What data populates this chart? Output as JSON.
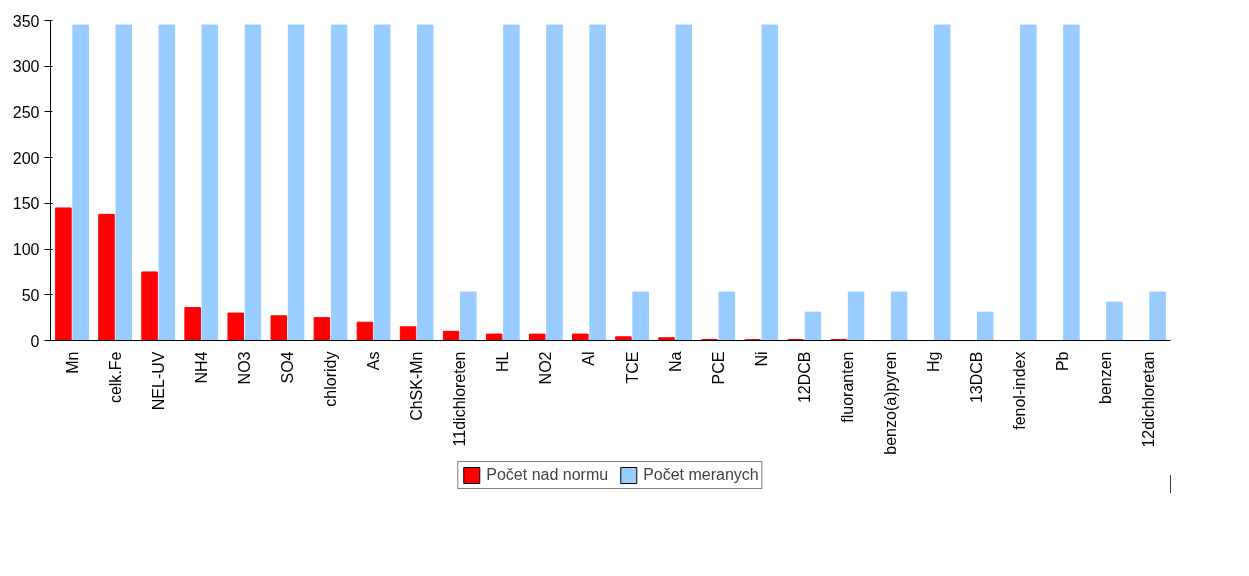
{
  "chart_data": {
    "type": "bar",
    "categories": [
      "Mn",
      "celk.Fe",
      "NEL-UV",
      "NH4",
      "NO3",
      "SO4",
      "chloridy",
      "As",
      "ChSK-Mn",
      "11dichloreten",
      "HL",
      "NO2",
      "Al",
      "TCE",
      "Na",
      "PCE",
      "Ni",
      "12DCB",
      "fluoranten",
      "benzo(a)pyren",
      "Hg",
      "13DCB",
      "fenol-index",
      "Pb",
      "benzen",
      "12dichloretan"
    ],
    "series": [
      {
        "name": "Počet nad normu",
        "color": "#ff0000",
        "values": [
          145,
          138,
          75,
          36,
          30,
          27,
          25,
          20,
          15,
          10,
          7,
          7,
          7,
          4,
          3,
          1,
          1,
          1,
          1,
          0,
          0,
          0,
          0,
          0,
          0,
          0
        ]
      },
      {
        "name": "Počet meranych",
        "color": "#99ccff",
        "values": [
          345,
          345,
          345,
          345,
          345,
          345,
          345,
          345,
          345,
          53,
          345,
          345,
          345,
          53,
          345,
          53,
          345,
          31,
          53,
          53,
          345,
          31,
          345,
          345,
          42,
          53
        ]
      }
    ],
    "ylim": [
      0,
      350
    ],
    "yticks": [
      0,
      50,
      100,
      150,
      200,
      250,
      300,
      350
    ],
    "grid": false,
    "legend": "bottom"
  }
}
